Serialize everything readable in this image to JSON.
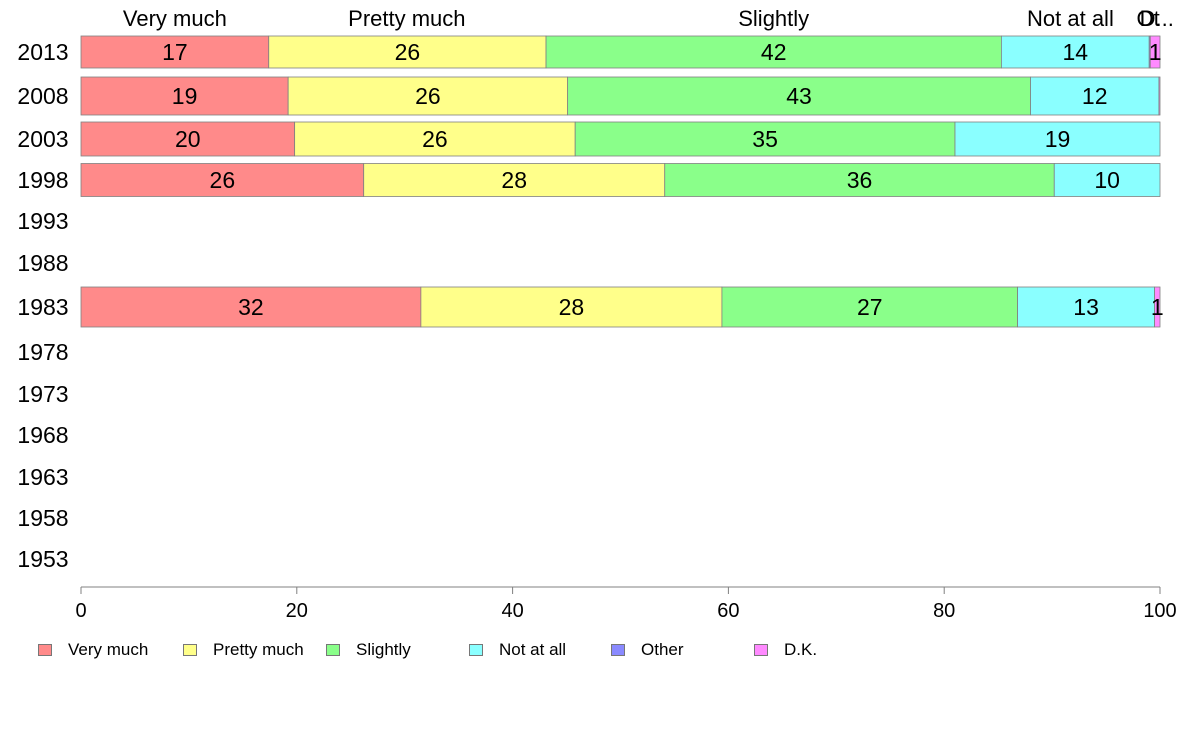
{
  "chart_data": {
    "type": "bar",
    "orientation": "horizontal",
    "stacked": true,
    "title": "",
    "xlabel": "",
    "ylabel": "",
    "xlim": [
      0,
      100
    ],
    "x_ticks": [
      0,
      20,
      40,
      60,
      80,
      100
    ],
    "categories": [
      "2013",
      "2008",
      "2003",
      "1998",
      "1993",
      "1988",
      "1983",
      "1978",
      "1973",
      "1968",
      "1963",
      "1958",
      "1953"
    ],
    "series": [
      {
        "name": "Very much",
        "color": "#ff8a8a",
        "values": [
          17.4,
          19.2,
          19.8,
          26.2,
          null,
          null,
          31.5,
          null,
          null,
          null,
          null,
          null,
          null
        ],
        "labels": [
          "17",
          "19",
          "20",
          "26",
          "",
          "",
          "32",
          "",
          "",
          "",
          "",
          "",
          ""
        ]
      },
      {
        "name": "Pretty much",
        "color": "#ffff8a",
        "values": [
          25.7,
          25.9,
          26.0,
          27.9,
          null,
          null,
          27.9,
          null,
          null,
          null,
          null,
          null,
          null
        ],
        "labels": [
          "26",
          "26",
          "26",
          "28",
          "",
          "",
          "28",
          "",
          "",
          "",
          "",
          "",
          ""
        ]
      },
      {
        "name": "Slightly",
        "color": "#8aff8a",
        "values": [
          42.2,
          42.9,
          35.2,
          36.1,
          null,
          null,
          27.4,
          null,
          null,
          null,
          null,
          null,
          null
        ],
        "labels": [
          "42",
          "43",
          "35",
          "36",
          "",
          "",
          "27",
          "",
          "",
          "",
          "",
          "",
          ""
        ]
      },
      {
        "name": "Not at all",
        "color": "#8affff",
        "values": [
          13.7,
          11.9,
          19.0,
          9.8,
          null,
          null,
          12.7,
          null,
          null,
          null,
          null,
          null,
          null
        ],
        "labels": [
          "14",
          "12",
          "19",
          "10",
          "",
          "",
          "13",
          "",
          "",
          "",
          "",
          "",
          ""
        ]
      },
      {
        "name": "Other",
        "color": "#8a8aff",
        "values": [
          0.1,
          0,
          0,
          0,
          null,
          null,
          0,
          null,
          null,
          null,
          null,
          null,
          null
        ],
        "labels": [
          "",
          "",
          "",
          "",
          "",
          "",
          "",
          "",
          "",
          "",
          "",
          "",
          ""
        ]
      },
      {
        "name": "D.K.",
        "color": "#ff8aff",
        "values": [
          0.9,
          0.1,
          0,
          0,
          null,
          null,
          0.5,
          null,
          null,
          null,
          null,
          null,
          null
        ],
        "labels": [
          "1",
          "",
          "",
          "",
          "",
          "",
          "1",
          "",
          "",
          "",
          "",
          "",
          ""
        ]
      }
    ],
    "top_labels": [
      {
        "text": "Very much",
        "x": 8.7
      },
      {
        "text": "Pretty much",
        "x": 30.2
      },
      {
        "text": "Slightly",
        "x": 64.2
      },
      {
        "text": "Not at all",
        "x": 91.7
      },
      {
        "text": "Ot",
        "x": 98.9
      },
      {
        "text": "D...",
        "x": 99.7
      }
    ],
    "legend": {
      "placement": "bottom-left",
      "items": [
        {
          "label": "Very much",
          "color": "#ff8a8a"
        },
        {
          "label": "Pretty much",
          "color": "#ffff8a"
        },
        {
          "label": "Slightly",
          "color": "#8aff8a"
        },
        {
          "label": "Not at all",
          "color": "#8affff"
        },
        {
          "label": "Other",
          "color": "#8a8aff"
        },
        {
          "label": "D.K.",
          "color": "#ff8aff"
        }
      ]
    },
    "grid": false
  }
}
